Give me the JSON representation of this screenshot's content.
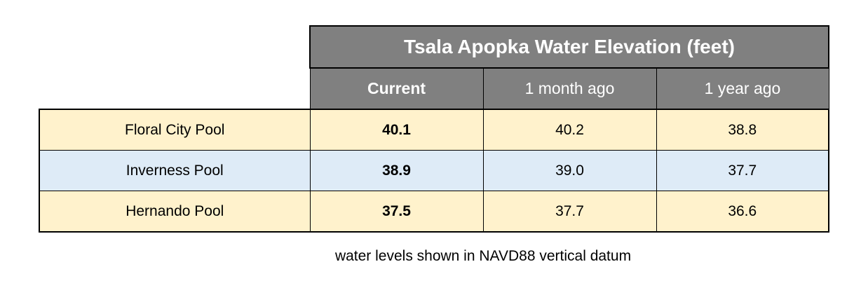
{
  "chart_data": {
    "type": "table",
    "title": "Tsala Apopka Water Elevation (feet)",
    "columns": [
      "Current",
      "1 month ago",
      "1 year ago"
    ],
    "rows": [
      {
        "label": "Floral City Pool",
        "values": [
          "40.1",
          "40.2",
          "38.8"
        ]
      },
      {
        "label": "Inverness Pool",
        "values": [
          "38.9",
          "39.0",
          "37.7"
        ]
      },
      {
        "label": "Hernando Pool",
        "values": [
          "37.5",
          "37.7",
          "36.6"
        ]
      }
    ],
    "footnote": "water levels shown in NAVD88 vertical datum",
    "colors": {
      "header_bg": "#808080",
      "header_text": "#ffffff",
      "row_odd_bg": "#fff2cc",
      "row_even_bg": "#deebf7"
    }
  }
}
